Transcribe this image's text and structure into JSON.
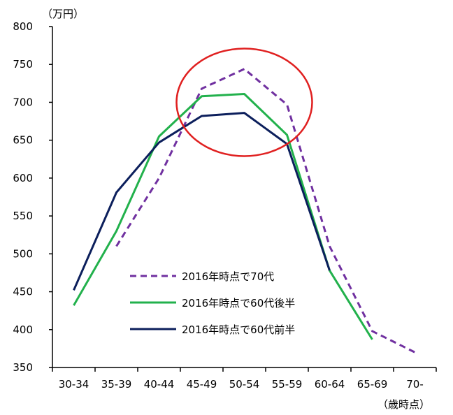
{
  "chart_data": {
    "type": "line",
    "ylabel_unit": "（万円）",
    "xlabel_unit": "（歳時点）",
    "ylim": [
      350,
      800
    ],
    "yticks": [
      350,
      400,
      450,
      500,
      550,
      600,
      650,
      700,
      750,
      800
    ],
    "categories": [
      "30-34",
      "35-39",
      "40-44",
      "45-49",
      "50-54",
      "55-59",
      "60-64",
      "65-69",
      "70-"
    ],
    "grid": false,
    "legend_position": "lower-center-left",
    "series": [
      {
        "name": "2016年時点で70代",
        "style": "dashed",
        "color": "#7030A0",
        "values": [
          null,
          510,
          600,
          718,
          744,
          697,
          510,
          398,
          370
        ]
      },
      {
        "name": "2016年時点で60代後半",
        "style": "solid",
        "color": "#22B14C",
        "values": [
          432,
          530,
          655,
          708,
          711,
          657,
          478,
          387,
          null
        ]
      },
      {
        "name": "2016年時点で60代前半",
        "style": "solid",
        "color": "#0C1F5C",
        "values": [
          452,
          581,
          647,
          682,
          686,
          645,
          478,
          null,
          null
        ]
      }
    ],
    "annotation": {
      "shape": "ellipse",
      "color": "#E02020",
      "around_categories": [
        "45-49",
        "50-54",
        "55-59"
      ]
    }
  }
}
